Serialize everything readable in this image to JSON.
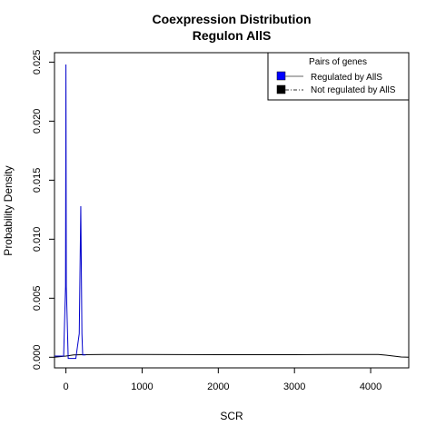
{
  "chart_data": {
    "type": "line",
    "title": "Coexpression Distribution",
    "subtitle": "Regulon AllS",
    "xlabel": "SCR",
    "ylabel": "Probability Density",
    "xlim": [
      -150,
      4500
    ],
    "ylim": [
      -0.0009,
      0.0258
    ],
    "x_ticks": [
      0,
      1000,
      2000,
      3000,
      4000
    ],
    "x_tick_labels": [
      "0",
      "1000",
      "2000",
      "3000",
      "4000"
    ],
    "y_ticks": [
      0,
      0.005,
      0.01,
      0.015,
      0.02,
      0.025
    ],
    "y_tick_labels": [
      "0.000",
      "0.005",
      "0.010",
      "0.015",
      "0.020",
      "0.025"
    ],
    "grid": false,
    "legend": {
      "title": "Pairs of genes",
      "position": "top-right",
      "entries": [
        {
          "label": "Regulated by  AllS",
          "color": "#0000ff",
          "line": "solid"
        },
        {
          "label": "Not regulated by  AllS",
          "color": "#000000",
          "line": "dashdot"
        }
      ]
    },
    "series": [
      {
        "name": "Regulated by  AllS",
        "color": "#0000cc",
        "x": [
          -150,
          -30,
          -5,
          0,
          5,
          30,
          60,
          130,
          175,
          195,
          210,
          220,
          230,
          260
        ],
        "y": [
          0.0001,
          0.0001,
          0.006,
          0.0248,
          0.006,
          -0.0001,
          -0.0001,
          -0.0001,
          0.002,
          0.0128,
          0.002,
          0.0002,
          0.0002,
          0.0002
        ]
      },
      {
        "name": "Not regulated by  AllS",
        "color": "#000000",
        "x": [
          -150,
          0,
          100,
          200,
          500,
          1000,
          2000,
          3000,
          3500,
          4000,
          4100,
          4200,
          4300,
          4400,
          4500
        ],
        "y": [
          0.0,
          0.0001,
          0.0002,
          0.00022,
          0.00023,
          0.00023,
          0.00022,
          0.00022,
          0.00023,
          0.00023,
          0.00023,
          0.00018,
          0.0001,
          2e-05,
          0.0
        ]
      }
    ]
  }
}
